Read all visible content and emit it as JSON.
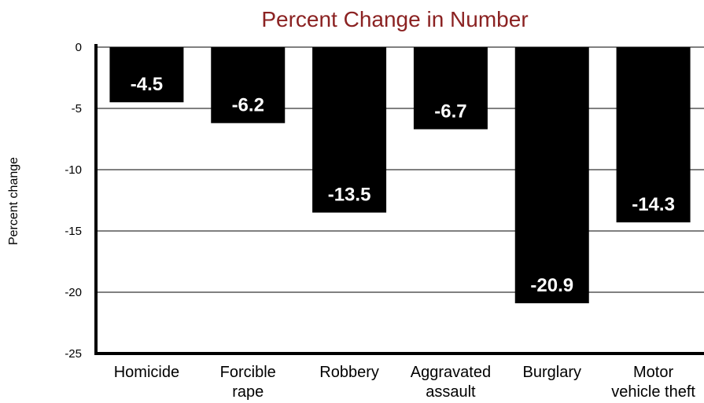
{
  "chart_data": {
    "type": "bar",
    "title": "Percent Change in Number",
    "ylabel": "Percent change",
    "categories": [
      [
        "Homicide"
      ],
      [
        "Forcible",
        "rape"
      ],
      [
        "Robbery"
      ],
      [
        "Aggravated",
        "assault"
      ],
      [
        "Burglary"
      ],
      [
        "Motor",
        "vehicle theft"
      ]
    ],
    "values": [
      -4.5,
      -6.2,
      -13.5,
      -6.7,
      -20.9,
      -14.3
    ],
    "data_labels": [
      "-4.5",
      "-6.2",
      "-13.5",
      "-6.7",
      "-20.9",
      "-14.3"
    ],
    "ylim": [
      -25,
      0
    ],
    "yticks": [
      0,
      -5,
      -10,
      -15,
      -20,
      -25
    ],
    "grid": true,
    "colors": {
      "bar": "#000000",
      "title": "#8b2222",
      "label_text": "#ffffff"
    }
  }
}
